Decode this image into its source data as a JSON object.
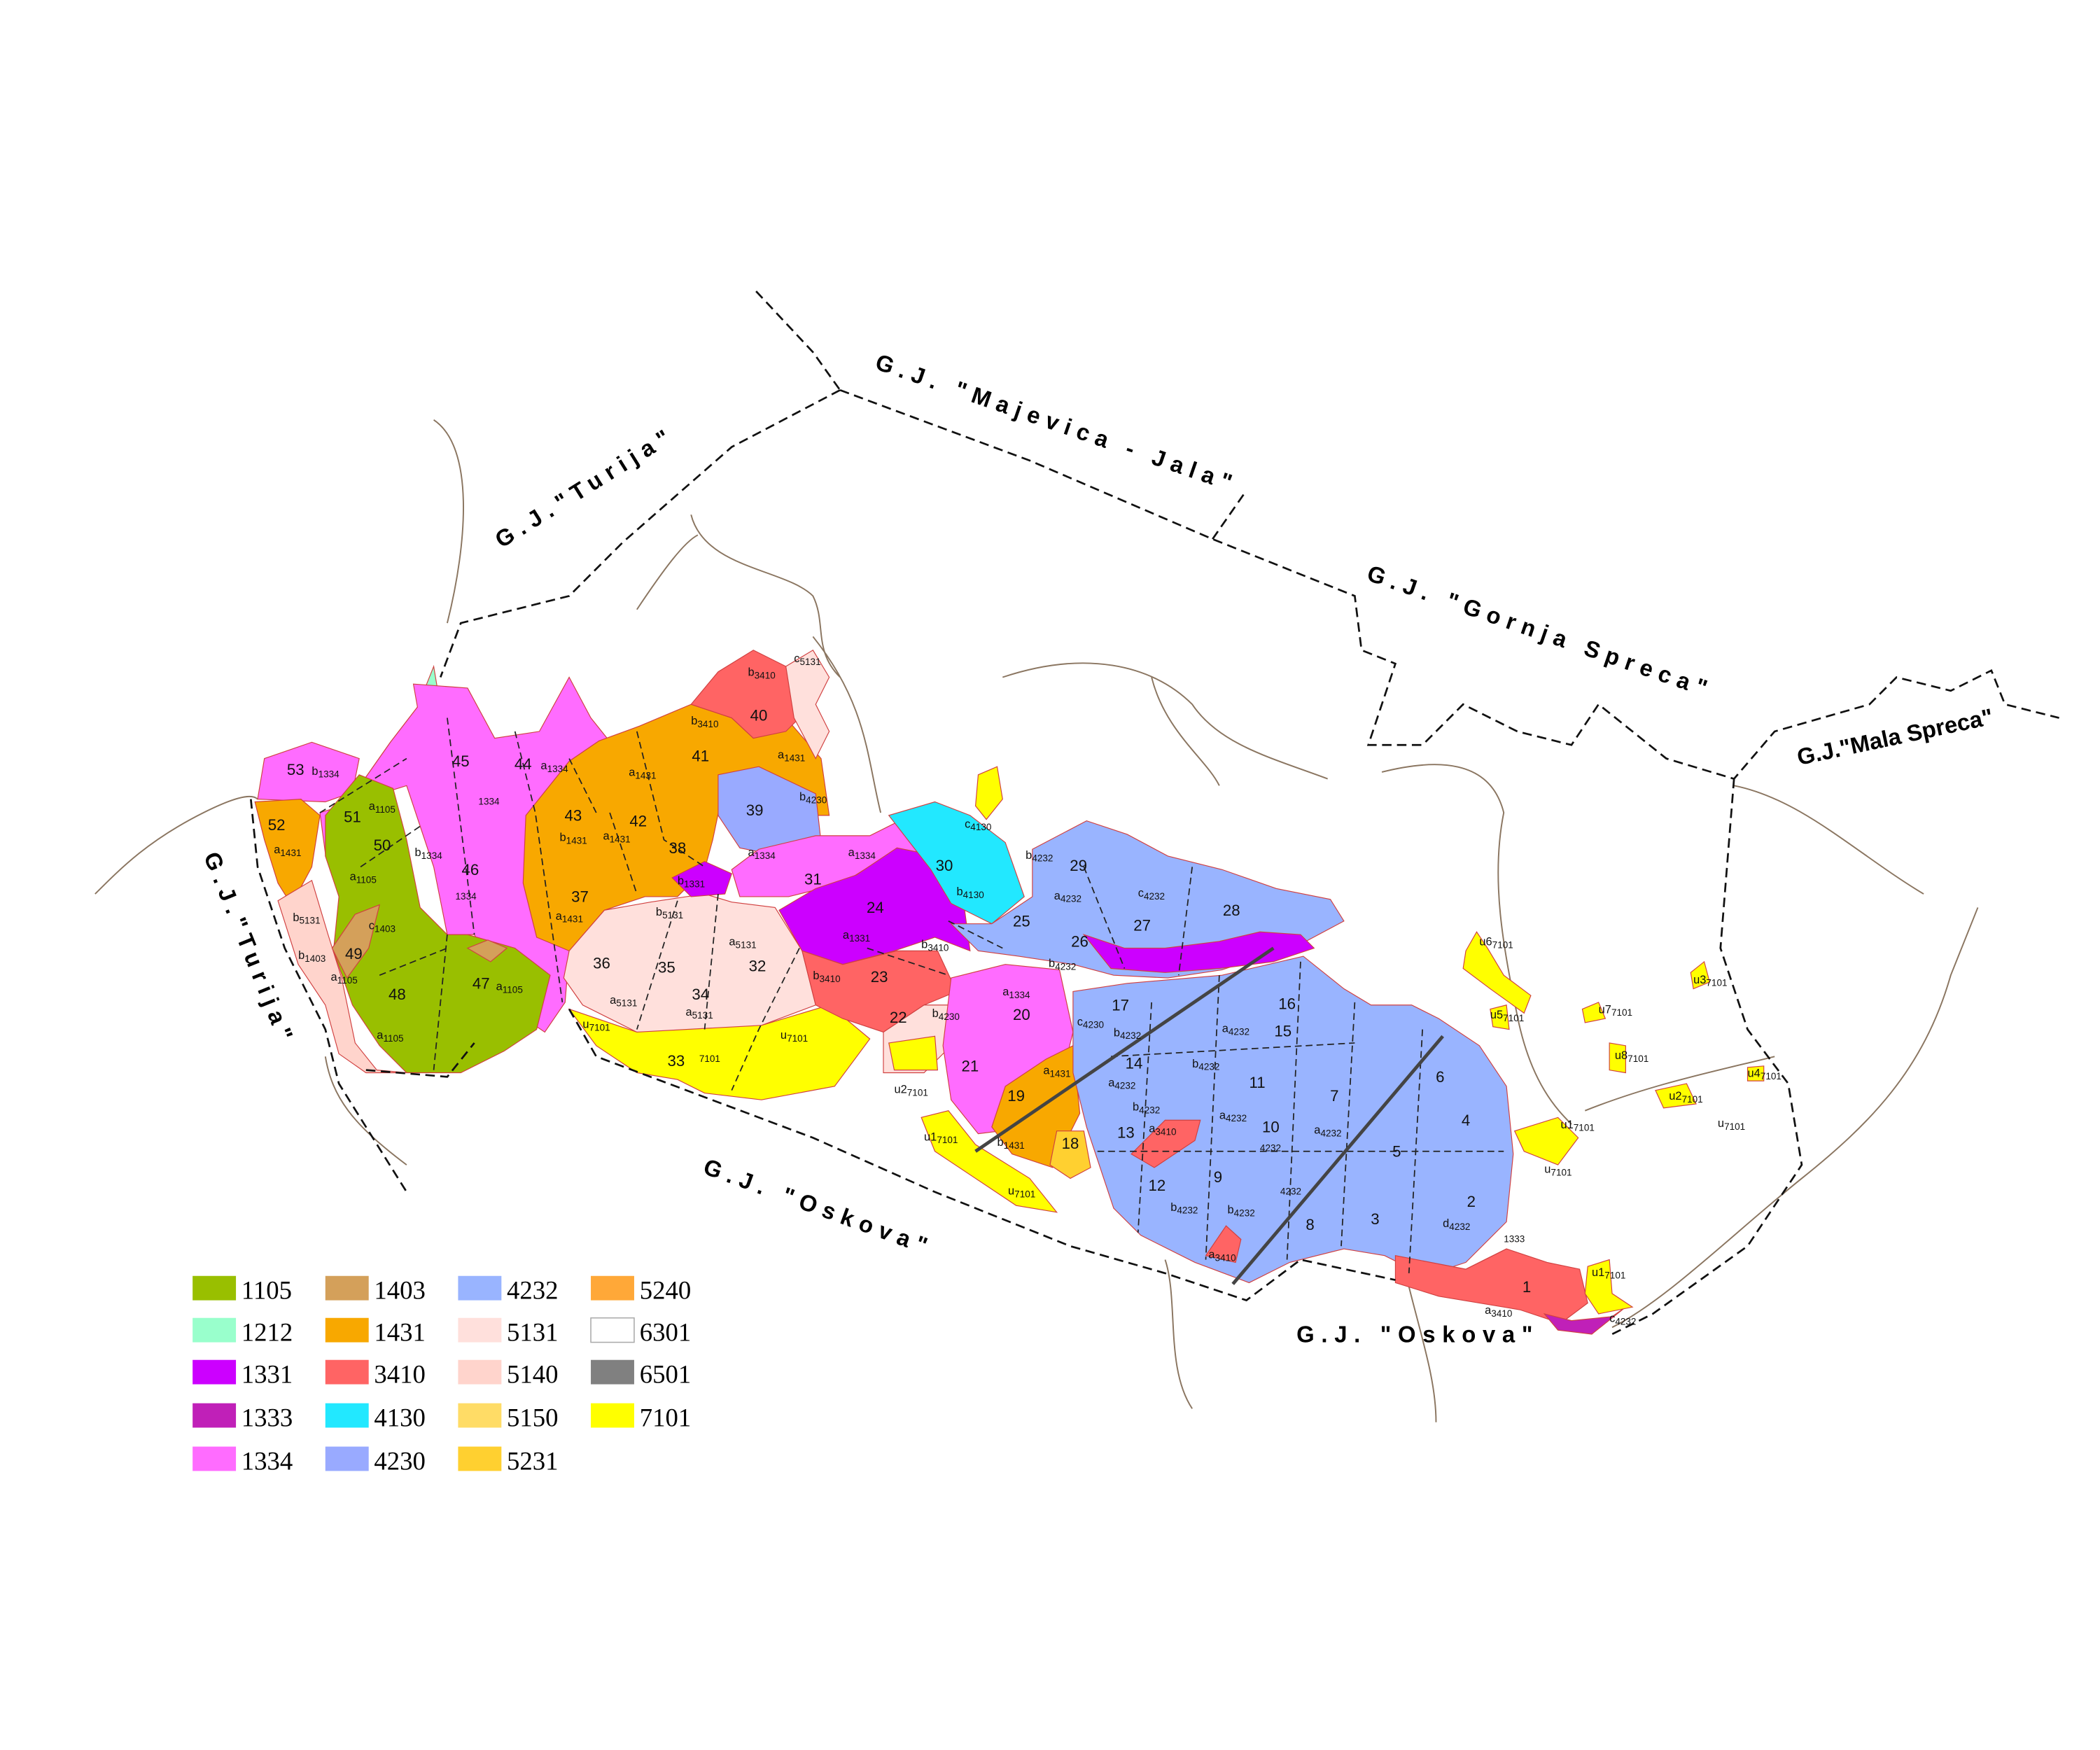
{
  "map": {
    "region_labels": [
      "G.J.\"Turija\"",
      "G.J. \"Majevica - Jala\"",
      "G.J. \"Gornja Spreca\"",
      "G.J.\"Mala Spreca\"",
      "G.J.\"Turija\"",
      "G.J. \"Oskova\"",
      "G.J. \"Oskova\""
    ],
    "compartments": [
      "53",
      "52",
      "51",
      "50",
      "49",
      "48",
      "47",
      "46",
      "45",
      "44",
      "43",
      "42",
      "41",
      "40",
      "39",
      "38",
      "37",
      "36",
      "35",
      "34",
      "33",
      "32",
      "31",
      "30",
      "29",
      "28",
      "27",
      "26",
      "25",
      "24",
      "23",
      "22",
      "21",
      "20",
      "19",
      "18",
      "17",
      "16",
      "15",
      "14",
      "13",
      "12",
      "11",
      "10",
      "9",
      "8",
      "7",
      "6",
      "5",
      "4",
      "3",
      "2",
      "1"
    ],
    "subdivision_labels": [
      {
        "p": "b",
        "c": "1334"
      },
      {
        "p": "a",
        "c": "1431"
      },
      {
        "p": "a",
        "c": "1105"
      },
      {
        "p": "a",
        "c": "1105"
      },
      {
        "p": "b",
        "c": "5131"
      },
      {
        "p": "b",
        "c": "1403"
      },
      {
        "p": "a",
        "c": "1105"
      },
      {
        "p": "a",
        "c": "1105"
      },
      {
        "p": "c",
        "c": "1403"
      },
      {
        "p": "a",
        "c": "1105"
      },
      {
        "p": "",
        "c": "1334"
      },
      {
        "p": "b",
        "c": "1334"
      },
      {
        "p": "a",
        "c": "1334"
      },
      {
        "p": "",
        "c": "1334"
      },
      {
        "p": "b",
        "c": "1431"
      },
      {
        "p": "a",
        "c": "1431"
      },
      {
        "p": "a",
        "c": "1431"
      },
      {
        "p": "a",
        "c": "1431"
      },
      {
        "p": "b",
        "c": "3410"
      },
      {
        "p": "c",
        "c": "5131"
      },
      {
        "p": "b",
        "c": "3410"
      },
      {
        "p": "b",
        "c": "4230"
      },
      {
        "p": "a",
        "c": "1431"
      },
      {
        "p": "a",
        "c": "1334"
      },
      {
        "p": "b",
        "c": "5131"
      },
      {
        "p": "a",
        "c": "5131"
      },
      {
        "p": "a",
        "c": "5131"
      },
      {
        "p": "a",
        "c": "5131"
      },
      {
        "p": "u",
        "c": "7101"
      },
      {
        "p": "",
        "c": "7101"
      },
      {
        "p": "u",
        "c": "7101"
      },
      {
        "p": "a",
        "c": "1334"
      },
      {
        "p": "b",
        "c": "1331"
      },
      {
        "p": "a",
        "c": "1331"
      },
      {
        "p": "b",
        "c": "3410"
      },
      {
        "p": "b",
        "c": "3410"
      },
      {
        "p": "b",
        "c": "4230"
      },
      {
        "p": "c",
        "c": "4130"
      },
      {
        "p": "b",
        "c": "4130"
      },
      {
        "p": "b",
        "c": "4232"
      },
      {
        "p": "a",
        "c": "4232"
      },
      {
        "p": "c",
        "c": "4232"
      },
      {
        "p": "b",
        "c": "4232"
      },
      {
        "p": "a",
        "c": "1334"
      },
      {
        "p": "a",
        "c": "1431"
      },
      {
        "p": "b",
        "c": "1431"
      },
      {
        "p": "c",
        "c": "4230"
      },
      {
        "p": "b",
        "c": "4232"
      },
      {
        "p": "a",
        "c": "4232"
      },
      {
        "p": "b",
        "c": "4232"
      },
      {
        "p": "a",
        "c": "3410"
      },
      {
        "p": "b",
        "c": "4232"
      },
      {
        "p": "a",
        "c": "4232"
      },
      {
        "p": "",
        "c": "4232"
      },
      {
        "p": "a",
        "c": "4232"
      },
      {
        "p": "b",
        "c": "4232"
      },
      {
        "p": "a",
        "c": "4232"
      },
      {
        "p": "b",
        "c": "4232"
      },
      {
        "p": "",
        "c": "4232"
      },
      {
        "p": "d",
        "c": "4232"
      },
      {
        "p": "a",
        "c": "3410"
      },
      {
        "p": "a",
        "c": "3410"
      },
      {
        "p": "u",
        "c": "7101"
      },
      {
        "p": "u1",
        "c": "7101"
      },
      {
        "p": "u2",
        "c": "7101"
      },
      {
        "p": "u3",
        "c": "7101"
      },
      {
        "p": "u4",
        "c": "7101"
      },
      {
        "p": "u5",
        "c": "7101"
      },
      {
        "p": "u6",
        "c": "7101"
      },
      {
        "p": "u7",
        "c": "7101"
      },
      {
        "p": "u8",
        "c": "7101"
      },
      {
        "p": "u1",
        "c": "7101"
      },
      {
        "p": "u2",
        "c": "7101"
      },
      {
        "p": "u",
        "c": "7101"
      },
      {
        "p": "c",
        "c": "4232"
      },
      {
        "p": "",
        "c": "1333"
      },
      {
        "p": "u",
        "c": "7101"
      },
      {
        "p": "u1",
        "c": "7101"
      }
    ]
  },
  "legend": {
    "items": [
      {
        "code": "1105",
        "color": "#99bf00"
      },
      {
        "code": "1212",
        "color": "#99ffcc"
      },
      {
        "code": "1331",
        "color": "#cc00ff"
      },
      {
        "code": "1333",
        "color": "#c020b8"
      },
      {
        "code": "1334",
        "color": "#ff6cff"
      },
      {
        "code": "1403",
        "color": "#d4a05a"
      },
      {
        "code": "1431",
        "color": "#f8a800"
      },
      {
        "code": "3410",
        "color": "#ff6464"
      },
      {
        "code": "4130",
        "color": "#22e8ff"
      },
      {
        "code": "4230",
        "color": "#99aaff"
      },
      {
        "code": "4232",
        "color": "#99b4ff"
      },
      {
        "code": "5131",
        "color": "#ffe0dc"
      },
      {
        "code": "5140",
        "color": "#ffd4cc"
      },
      {
        "code": "5150",
        "color": "#ffdc66"
      },
      {
        "code": "5231",
        "color": "#ffd030"
      },
      {
        "code": "5240",
        "color": "#ffa838"
      },
      {
        "code": "6301",
        "color": "#ffffff"
      },
      {
        "code": "6501",
        "color": "#808080"
      },
      {
        "code": "7101",
        "color": "#ffff00"
      }
    ]
  }
}
